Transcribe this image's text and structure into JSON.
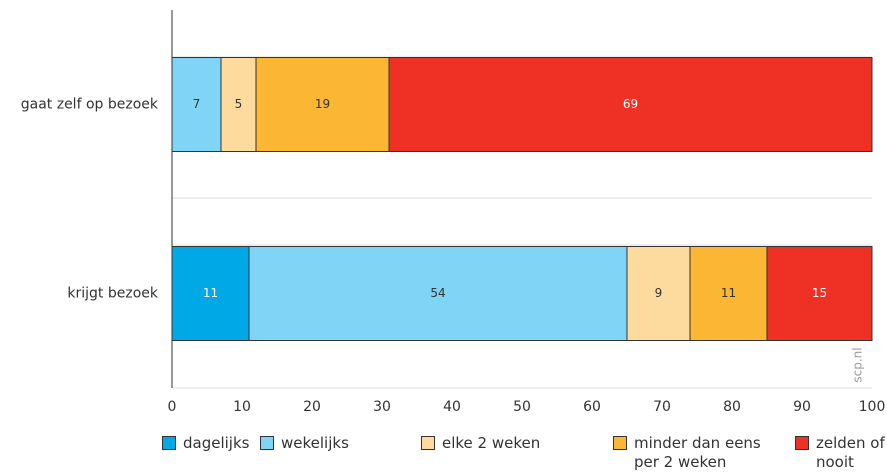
{
  "chart_data": {
    "type": "stacked-barh",
    "categories": [
      "gaat zelf op bezoek",
      "krijgt bezoek"
    ],
    "series": [
      {
        "name": "dagelijks",
        "color": "#00a9e6",
        "text_color": "#ffffff",
        "values": [
          0,
          11
        ]
      },
      {
        "name": "wekelijks",
        "color": "#80d4f6",
        "text_color": "#333333",
        "values": [
          7,
          54
        ]
      },
      {
        "name": "elke 2 weken",
        "color": "#fdda9e",
        "text_color": "#333333",
        "values": [
          5,
          9
        ]
      },
      {
        "name": "minder dan eens per 2 weken",
        "color": "#fbb634",
        "text_color": "#333333",
        "values": [
          19,
          11
        ]
      },
      {
        "name": "zelden of nooit",
        "color": "#ee3124",
        "text_color": "#ffffff",
        "values": [
          69,
          15
        ]
      }
    ],
    "xlim": [
      0,
      100
    ],
    "xticks": [
      0,
      10,
      20,
      30,
      40,
      50,
      60,
      70,
      80,
      90,
      100
    ],
    "grid": true,
    "legend": "bottom",
    "watermark": "scp.nl"
  }
}
